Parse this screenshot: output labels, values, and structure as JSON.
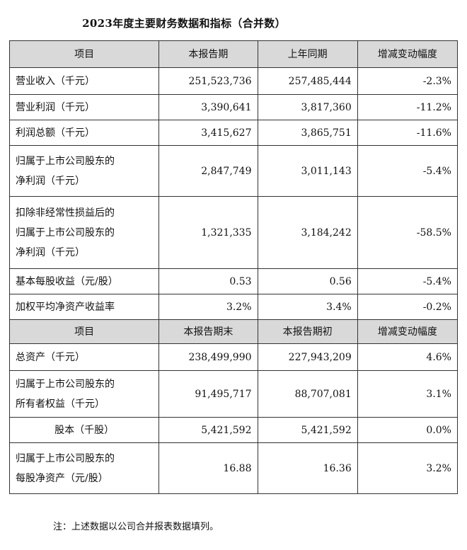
{
  "title": "2023年度主要财务数据和指标（合并数）",
  "header1": [
    "项目",
    "本报告期",
    "上年同期",
    "增减变动幅度"
  ],
  "rows1": [
    {
      "label": [
        "营业收入（千元）"
      ],
      "a": "251,523,736",
      "b": "257,485,444",
      "c": "-2.3%"
    },
    {
      "label": [
        "营业利润（千元）"
      ],
      "a": "3,390,641",
      "b": "3,817,360",
      "c": "-11.2%"
    },
    {
      "label": [
        "利润总额（千元）"
      ],
      "a": "3,415,627",
      "b": "3,865,751",
      "c": "-11.6%"
    },
    {
      "label": [
        "归属于上市公司股东的",
        "净利润（千元）"
      ],
      "a": "2,847,749",
      "b": "3,011,143",
      "c": "-5.4%"
    },
    {
      "label": [
        "扣除非经常性损益后的",
        "归属于上市公司股东的",
        "净利润（千元）"
      ],
      "a": "1,321,335",
      "b": "3,184,242",
      "c": "-58.5%"
    },
    {
      "label": [
        "基本每股收益（元/股）"
      ],
      "a": "0.53",
      "b": "0.56",
      "c": "-5.4%"
    },
    {
      "label": [
        "加权平均净资产收益率"
      ],
      "a": "3.2%",
      "b": "3.4%",
      "c": "-0.2%"
    }
  ],
  "header2": [
    "项目",
    "本报告期末",
    "本报告期初",
    "增减变动幅度"
  ],
  "rows2": [
    {
      "label": [
        "总资产（千元）"
      ],
      "a": "238,499,990",
      "b": "227,943,209",
      "c": "4.6%"
    },
    {
      "label": [
        "归属于上市公司股东的",
        "所有者权益（千元）"
      ],
      "a": "91,495,717",
      "b": "88,707,081",
      "c": "3.1%"
    },
    {
      "label": [
        "股本（千股）"
      ],
      "a": "5,421,592",
      "b": "5,421,592",
      "c": "0.0%"
    },
    {
      "label": [
        "归属于上市公司股东的",
        "每股净资产（元/股）"
      ],
      "a": "16.88",
      "b": "16.36",
      "c": "3.2%"
    }
  ],
  "note": "注：上述数据以公司合并报表数据填列。"
}
